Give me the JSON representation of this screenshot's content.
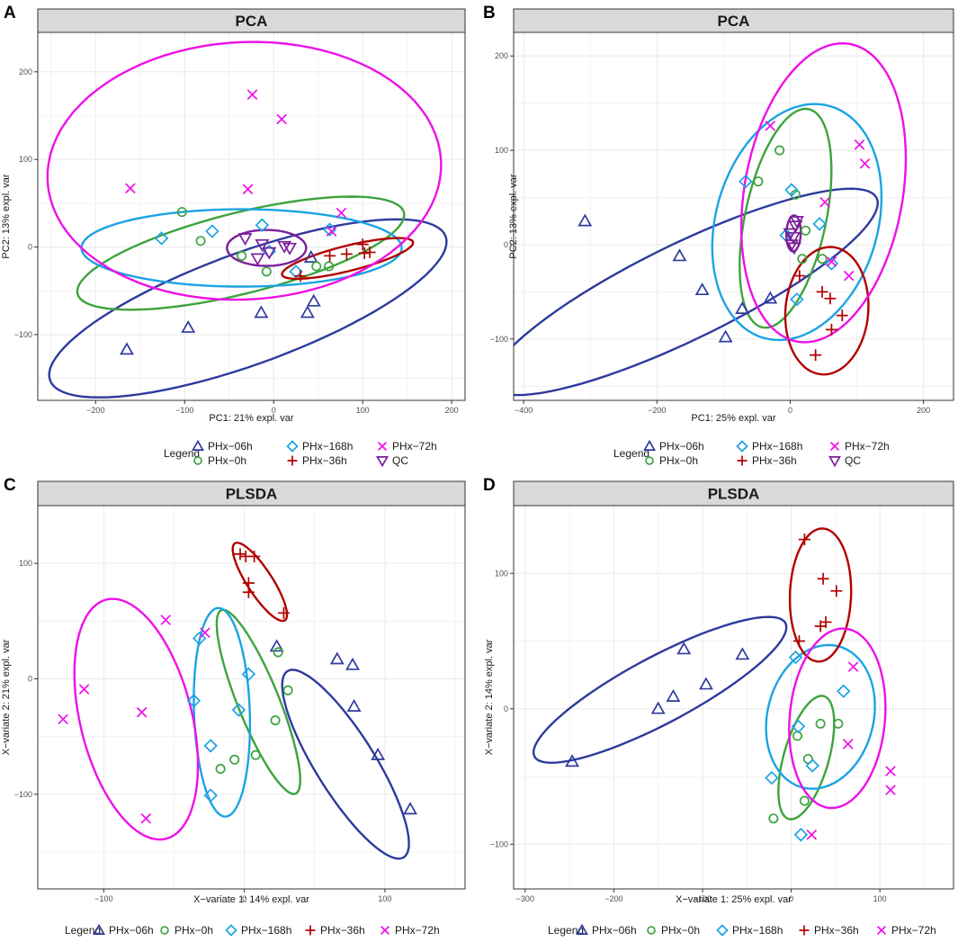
{
  "colors": {
    "PHx-06h": "#2E3A9E",
    "PHx-0h": "#3DA33D",
    "PHx-168h": "#1BA3E3",
    "PHx-36h": "#B20000",
    "PHx-72h": "#EE10E8",
    "QC": "#7B1F9B"
  },
  "chart_data": [
    {
      "panel": "A",
      "type": "scatter",
      "title": "PCA",
      "xlabel": "PC1: 21% expl. var",
      "ylabel": "PC2: 13% expl. var",
      "xlim": [
        -265,
        215
      ],
      "ylim": [
        -175,
        245
      ],
      "xticks": [
        -200,
        -100,
        0,
        100,
        200
      ],
      "yticks": [
        -100,
        0,
        100,
        200
      ],
      "legend": {
        "title": "Legend",
        "rows": [
          [
            "PHx-06h",
            "PHx-168h",
            "PHx-72h"
          ],
          [
            "PHx-0h",
            "PHx-36h",
            "QC"
          ]
        ]
      },
      "series": [
        {
          "name": "PHx-06h",
          "shape": "triangle",
          "points": [
            [
              -165,
              -117
            ],
            [
              -96,
              -92
            ],
            [
              -14,
              -75
            ],
            [
              38,
              -75
            ],
            [
              45,
              -62
            ],
            [
              42,
              -12
            ]
          ]
        },
        {
          "name": "PHx-0h",
          "shape": "circle",
          "points": [
            [
              -103,
              40
            ],
            [
              -82,
              7
            ],
            [
              -36,
              -10
            ],
            [
              -8,
              -28
            ],
            [
              48,
              -22
            ],
            [
              62,
              -22
            ]
          ]
        },
        {
          "name": "PHx-168h",
          "shape": "diamond",
          "points": [
            [
              -126,
              10
            ],
            [
              -69,
              18
            ],
            [
              -13,
              25
            ],
            [
              -5,
              -5
            ],
            [
              25,
              -28
            ],
            [
              63,
              20
            ]
          ]
        },
        {
          "name": "PHx-36h",
          "shape": "plus",
          "points": [
            [
              30,
              -33
            ],
            [
              63,
              -10
            ],
            [
              82,
              -8
            ],
            [
              100,
              3
            ],
            [
              102,
              -7
            ],
            [
              108,
              -6
            ]
          ]
        },
        {
          "name": "PHx-72h",
          "shape": "cross",
          "points": [
            [
              -161,
              67
            ],
            [
              -29,
              66
            ],
            [
              -24,
              174
            ],
            [
              9,
              146
            ],
            [
              65,
              18
            ],
            [
              76,
              39
            ]
          ]
        },
        {
          "name": "QC",
          "shape": "triangle-down",
          "points": [
            [
              -32,
              10
            ],
            [
              -13,
              3
            ],
            [
              -5,
              -6
            ],
            [
              12,
              1
            ],
            [
              18,
              -1
            ],
            [
              -18,
              -13
            ]
          ]
        }
      ],
      "ellipses": [
        {
          "name": "PHx-06h",
          "cx": -29,
          "cy": -70,
          "rx": 234,
          "ry": 62,
          "angle": 20
        },
        {
          "name": "PHx-0h",
          "cx": -37,
          "cy": -7,
          "rx": 187,
          "ry": 45,
          "angle": 14
        },
        {
          "name": "PHx-168h",
          "cx": -36,
          "cy": -1,
          "rx": 178,
          "ry": 43,
          "angle": 0
        },
        {
          "name": "PHx-36h",
          "cx": 83,
          "cy": -13,
          "rx": 75,
          "ry": 14,
          "angle": 14
        },
        {
          "name": "PHx-72h",
          "cx": -33,
          "cy": 87,
          "rx": 219,
          "ry": 143,
          "angle": 3
        },
        {
          "name": "QC",
          "cx": -8,
          "cy": -1,
          "rx": 44,
          "ry": 20,
          "angle": 0
        }
      ]
    },
    {
      "panel": "B",
      "type": "scatter",
      "title": "PCA",
      "xlabel": "PC1: 25% expl. var",
      "ylabel": "PC2: 13% expl. var",
      "xlim": [
        -415,
        245
      ],
      "ylim": [
        -165,
        225
      ],
      "xticks": [
        -400,
        -200,
        0,
        200
      ],
      "yticks": [
        -100,
        0,
        100,
        200
      ],
      "legend": {
        "title": "Legend",
        "rows": [
          [
            "PHx-06h",
            "PHx-168h",
            "PHx-72h"
          ],
          [
            "PHx-0h",
            "PHx-36h",
            "QC"
          ]
        ]
      },
      "series": [
        {
          "name": "PHx-06h",
          "shape": "triangle",
          "points": [
            [
              -308,
              25
            ],
            [
              -166,
              -12
            ],
            [
              -132,
              -48
            ],
            [
              -97,
              -98
            ],
            [
              -72,
              -68
            ],
            [
              -30,
              -57
            ]
          ]
        },
        {
          "name": "PHx-0h",
          "shape": "circle",
          "points": [
            [
              -48,
              67
            ],
            [
              -16,
              100
            ],
            [
              8,
              53
            ],
            [
              18,
              -15
            ],
            [
              48,
              -15
            ],
            [
              23,
              15
            ]
          ]
        },
        {
          "name": "PHx-168h",
          "shape": "diamond",
          "points": [
            [
              -67,
              67
            ],
            [
              2,
              58
            ],
            [
              -6,
              10
            ],
            [
              44,
              22
            ],
            [
              10,
              -58
            ],
            [
              62,
              -20
            ]
          ]
        },
        {
          "name": "PHx-36h",
          "shape": "plus",
          "points": [
            [
              14,
              -33
            ],
            [
              48,
              -50
            ],
            [
              60,
              -57
            ],
            [
              78,
              -75
            ],
            [
              38,
              -117
            ],
            [
              62,
              -90
            ]
          ]
        },
        {
          "name": "PHx-72h",
          "shape": "cross",
          "points": [
            [
              -30,
              126
            ],
            [
              52,
              45
            ],
            [
              104,
              106
            ],
            [
              112,
              86
            ],
            [
              62,
              -18
            ],
            [
              88,
              -33
            ]
          ]
        },
        {
          "name": "QC",
          "shape": "triangle-down",
          "points": [
            [
              2,
              0
            ],
            [
              5,
              8
            ],
            [
              8,
              20
            ],
            [
              6,
              -3
            ],
            [
              10,
              25
            ],
            [
              0,
              12
            ]
          ]
        }
      ],
      "ellipses": [
        {
          "name": "PHx-06h",
          "cx": -159,
          "cy": -50,
          "rx": 238,
          "ry": 53,
          "angle": 26
        },
        {
          "name": "PHx-0h",
          "cx": -7,
          "cy": 28,
          "rx": 124,
          "ry": 45,
          "angle": 78
        },
        {
          "name": "PHx-168h",
          "cx": 10,
          "cy": 24,
          "rx": 134,
          "ry": 90,
          "angle": 74
        },
        {
          "name": "PHx-36h",
          "cx": 55,
          "cy": -70,
          "rx": 71,
          "ry": 46,
          "angle": 85
        },
        {
          "name": "PHx-72h",
          "cx": 50,
          "cy": 55,
          "rx": 168,
          "ry": 88,
          "angle": 80
        },
        {
          "name": "QC",
          "cx": 5,
          "cy": 12,
          "rx": 20,
          "ry": 8,
          "angle": 88
        }
      ]
    },
    {
      "panel": "C",
      "type": "scatter",
      "title": "PLSDA",
      "xlabel": "X−variate 1: 14% expl. var",
      "ylabel": "X−variate 2: 21% expl. var",
      "xlim": [
        -147,
        157
      ],
      "ylim": [
        -182,
        150
      ],
      "xticks": [
        -100,
        0,
        100
      ],
      "yticks": [
        -100,
        0,
        100
      ],
      "legend": {
        "title": "Legend",
        "rows": [
          [
            "PHx-06h",
            "PHx-0h",
            "PHx-168h",
            "PHx-36h",
            "PHx-72h"
          ]
        ]
      },
      "series": [
        {
          "name": "PHx-06h",
          "shape": "triangle",
          "points": [
            [
              23,
              28
            ],
            [
              66,
              17
            ],
            [
              77,
              12
            ],
            [
              78,
              -24
            ],
            [
              95,
              -66
            ],
            [
              118,
              -113
            ]
          ]
        },
        {
          "name": "PHx-0h",
          "shape": "circle",
          "points": [
            [
              24,
              23
            ],
            [
              31,
              -10
            ],
            [
              22,
              -36
            ],
            [
              8,
              -66
            ],
            [
              -7,
              -70
            ],
            [
              -17,
              -78
            ]
          ]
        },
        {
          "name": "PHx-168h",
          "shape": "diamond",
          "points": [
            [
              -32,
              35
            ],
            [
              -36,
              -19
            ],
            [
              -4,
              -27
            ],
            [
              3,
              4
            ],
            [
              -24,
              -58
            ],
            [
              -24,
              -101
            ]
          ]
        },
        {
          "name": "PHx-36h",
          "shape": "plus",
          "points": [
            [
              -3,
              108
            ],
            [
              1,
              106
            ],
            [
              7,
              106
            ],
            [
              3,
              83
            ],
            [
              3,
              75
            ],
            [
              28,
              57
            ]
          ]
        },
        {
          "name": "PHx-72h",
          "shape": "cross",
          "points": [
            [
              -56,
              51
            ],
            [
              -28,
              40
            ],
            [
              -114,
              -9
            ],
            [
              -73,
              -29
            ],
            [
              -129,
              -35
            ],
            [
              -70,
              -121
            ]
          ]
        }
      ],
      "ellipses": [
        {
          "name": "PHx-06h",
          "cx": 72,
          "cy": -74,
          "rx": 122,
          "ry": 33,
          "angle": -58
        },
        {
          "name": "PHx-0h",
          "cx": 10,
          "cy": -20,
          "rx": 110,
          "ry": 23,
          "angle": -68
        },
        {
          "name": "PHx-168h",
          "cx": -16,
          "cy": -29,
          "rx": 116,
          "ry": 31,
          "angle": -88
        },
        {
          "name": "PHx-36h",
          "cx": 11,
          "cy": 84,
          "rx": 51,
          "ry": 14,
          "angle": -57
        },
        {
          "name": "PHx-72h",
          "cx": -77,
          "cy": -35,
          "rx": 137,
          "ry": 62,
          "angle": -76
        }
      ]
    },
    {
      "panel": "D",
      "type": "scatter",
      "title": "PLSDA",
      "xlabel": "X−variate 1: 25% expl. var",
      "ylabel": "X−variate 2: 14% expl. var",
      "xlim": [
        -313,
        183
      ],
      "ylim": [
        -133,
        150
      ],
      "xticks": [
        -300,
        -200,
        -100,
        0,
        100
      ],
      "yticks": [
        -100,
        0,
        100
      ],
      "legend": {
        "title": "Legend",
        "rows": [
          [
            "PHx-06h",
            "PHx-0h",
            "PHx-168h",
            "PHx-36h",
            "PHx-72h"
          ]
        ]
      },
      "series": [
        {
          "name": "PHx-06h",
          "shape": "triangle",
          "points": [
            [
              -247,
              -39
            ],
            [
              -150,
              0
            ],
            [
              -133,
              9
            ],
            [
              -121,
              44
            ],
            [
              -96,
              18
            ],
            [
              -55,
              40
            ]
          ]
        },
        {
          "name": "PHx-0h",
          "shape": "circle",
          "points": [
            [
              -20,
              -81
            ],
            [
              7,
              -20
            ],
            [
              15,
              -68
            ],
            [
              19,
              -37
            ],
            [
              33,
              -11
            ],
            [
              53,
              -11
            ]
          ]
        },
        {
          "name": "PHx-168h",
          "shape": "diamond",
          "points": [
            [
              -22,
              -51
            ],
            [
              5,
              38
            ],
            [
              8,
              -13
            ],
            [
              11,
              -93
            ],
            [
              24,
              -42
            ],
            [
              59,
              13
            ]
          ]
        },
        {
          "name": "PHx-36h",
          "shape": "plus",
          "points": [
            [
              15,
              125
            ],
            [
              36,
              96
            ],
            [
              51,
              87
            ],
            [
              9,
              50
            ],
            [
              33,
              61
            ],
            [
              39,
              64
            ]
          ]
        },
        {
          "name": "PHx-72h",
          "shape": "cross",
          "points": [
            [
              70,
              31
            ],
            [
              64,
              -26
            ],
            [
              112,
              -46
            ],
            [
              112,
              -60
            ],
            [
              23,
              -93
            ]
          ]
        }
      ],
      "ellipses": [
        {
          "name": "PHx-06h",
          "cx": -148,
          "cy": 14,
          "rx": 158,
          "ry": 37,
          "angle": 28
        },
        {
          "name": "PHx-0h",
          "cx": 17,
          "cy": -36,
          "rx": 71,
          "ry": 25,
          "angle": 74
        },
        {
          "name": "PHx-168h",
          "cx": 33,
          "cy": -6,
          "rx": 81,
          "ry": 59,
          "angle": 76
        },
        {
          "name": "PHx-36h",
          "cx": 33,
          "cy": 84,
          "rx": 74,
          "ry": 34,
          "angle": 88
        },
        {
          "name": "PHx-72h",
          "cx": 52,
          "cy": -7,
          "rx": 100,
          "ry": 53,
          "angle": 85
        }
      ]
    }
  ]
}
